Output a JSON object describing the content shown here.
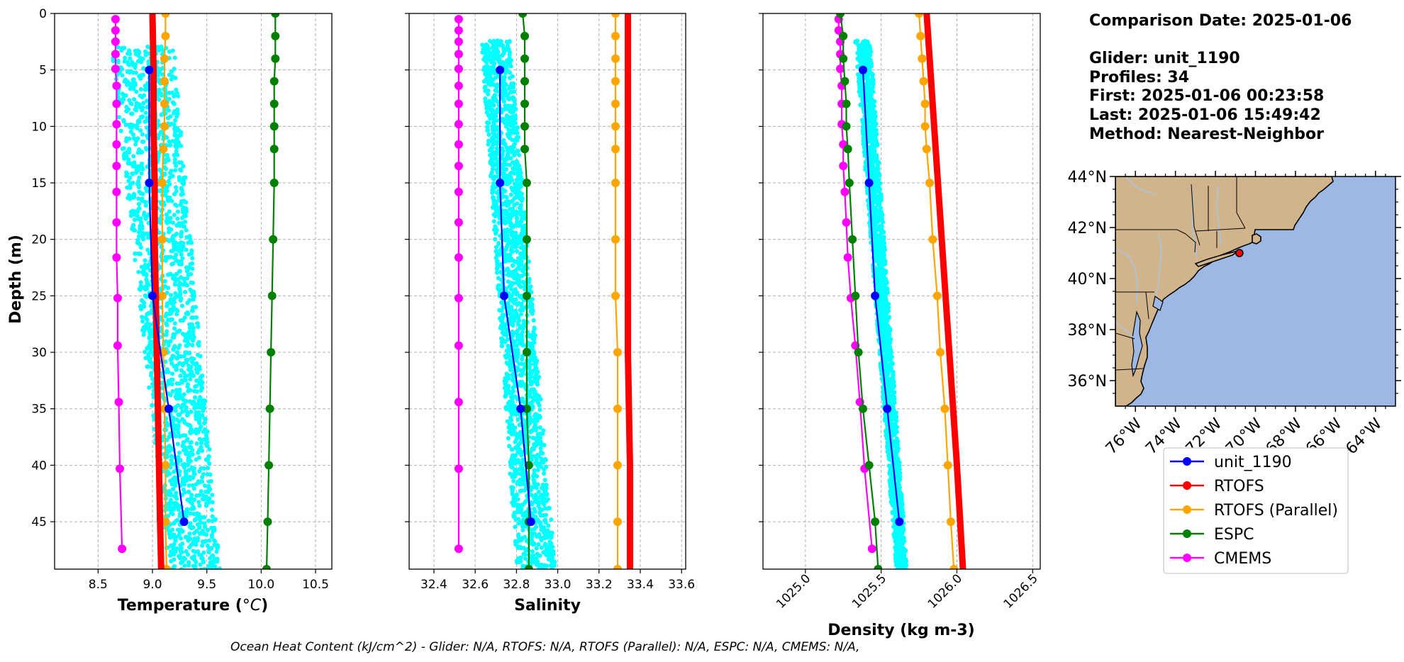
{
  "info": {
    "comparison_date": "Comparison Date: 2025-01-06",
    "glider": "Glider: unit_1190",
    "profiles": "Profiles: 34",
    "first": "First: 2025-01-06 00:23:58",
    "last": "Last: 2025-01-06 15:49:42",
    "method": "Method: Nearest-Neighbor"
  },
  "footer": "Ocean Heat Content (kJ/cm^2) - Glider: N/A,  RTOFS: N/A,  RTOFS (Parallel): N/A,  ESPC: N/A,  CMEMS: N/A,",
  "colors": {
    "unit_1190": "#0000ff",
    "RTOFS": "#ff0000",
    "RTOFS (Parallel)": "#ffa500",
    "ESPC": "#008000",
    "CMEMS": "#ff00ff",
    "glider_scatter": "#00ffff",
    "land": "#d2b48c",
    "ocean": "#9db9e3",
    "rivers": "#a8c4e6"
  },
  "legend": {
    "placement": "below-map",
    "entries": [
      "unit_1190",
      "RTOFS",
      "RTOFS (Parallel)",
      "ESPC",
      "CMEMS"
    ]
  },
  "chart_data": [
    {
      "type": "line",
      "id": "temperature",
      "xlabel": "Temperature (",
      "xlabel_unit": "°C",
      "xlabel_close": ")",
      "ylabel": "Depth (m)",
      "xlim": [
        8.1,
        10.65
      ],
      "ylim": [
        49.2,
        0
      ],
      "xticks": [
        8.5,
        9.0,
        9.5,
        10.0,
        10.5
      ],
      "xtick_labels": [
        "8.5",
        "9.0",
        "9.5",
        "10.0",
        "10.5"
      ],
      "yticks": [
        0,
        5,
        10,
        15,
        20,
        25,
        30,
        35,
        40,
        45
      ],
      "ytick_labels": [
        "0",
        "5",
        "10",
        "15",
        "20",
        "25",
        "30",
        "35",
        "40",
        "45"
      ],
      "grid": true,
      "scatter": {
        "name": "unit_1190",
        "depth_range": [
          3,
          49.2
        ],
        "x_low": [
          8.62,
          9.15
        ],
        "x_high": [
          9.2,
          9.62
        ]
      },
      "series": [
        {
          "name": "unit_1190",
          "y": [
            5,
            15,
            25,
            35,
            45
          ],
          "x": [
            8.97,
            8.97,
            9.0,
            9.15,
            9.29
          ]
        },
        {
          "name": "RTOFS",
          "y": [
            0,
            5,
            10,
            15,
            20,
            25,
            30,
            35,
            40,
            45,
            49.2
          ],
          "x": [
            9.0,
            9.01,
            9.01,
            9.02,
            9.02,
            9.03,
            9.04,
            9.05,
            9.06,
            9.07,
            9.08
          ],
          "markers": false
        },
        {
          "name": "RTOFS (Parallel)",
          "y": [
            0,
            2,
            4,
            6,
            8,
            10,
            12,
            15,
            20,
            25,
            30,
            35,
            40,
            45,
            49.2
          ],
          "x": [
            9.12,
            9.12,
            9.11,
            9.11,
            9.11,
            9.11,
            9.1,
            9.09,
            9.09,
            9.09,
            9.1,
            9.11,
            9.12,
            9.12,
            9.13
          ],
          "markers": true
        },
        {
          "name": "ESPC",
          "y": [
            0,
            2,
            4,
            6,
            8,
            10,
            12,
            15,
            20,
            25,
            30,
            35,
            40,
            45,
            49.2
          ],
          "x": [
            10.13,
            10.13,
            10.13,
            10.12,
            10.12,
            10.12,
            10.12,
            10.12,
            10.11,
            10.1,
            10.09,
            10.08,
            10.07,
            10.06,
            10.05
          ],
          "markers": true
        },
        {
          "name": "CMEMS",
          "y": [
            0.5,
            1.5,
            2.5,
            3.6,
            4.9,
            6.4,
            8.0,
            9.8,
            11.6,
            13.5,
            15.8,
            18.5,
            21.6,
            25.2,
            29.4,
            34.4,
            40.3,
            47.4
          ],
          "x": [
            8.66,
            8.66,
            8.66,
            8.66,
            8.66,
            8.67,
            8.67,
            8.67,
            8.67,
            8.67,
            8.67,
            8.67,
            8.67,
            8.68,
            8.68,
            8.69,
            8.7,
            8.72
          ],
          "markers": true
        }
      ]
    },
    {
      "type": "line",
      "id": "salinity",
      "xlabel": "Salinity",
      "xlim": [
        32.28,
        33.62
      ],
      "ylim": [
        49.2,
        0
      ],
      "xticks": [
        32.4,
        32.6,
        32.8,
        33.0,
        33.2,
        33.4,
        33.6
      ],
      "xtick_labels": [
        "32.4",
        "32.6",
        "32.8",
        "33.0",
        "33.2",
        "33.4",
        "33.6"
      ],
      "yticks": [
        0,
        5,
        10,
        15,
        20,
        25,
        30,
        35,
        40,
        45
      ],
      "grid": true,
      "scatter": {
        "name": "unit_1190",
        "depth_range": [
          2.5,
          49.2
        ],
        "x_low": [
          32.63,
          32.8
        ],
        "x_high": [
          32.77,
          32.99
        ]
      },
      "series": [
        {
          "name": "unit_1190",
          "y": [
            5,
            15,
            25,
            35,
            45
          ],
          "x": [
            32.72,
            32.72,
            32.74,
            32.82,
            32.87
          ]
        },
        {
          "name": "RTOFS",
          "y": [
            0,
            10,
            20,
            30,
            40,
            49.2
          ],
          "x": [
            33.34,
            33.34,
            33.34,
            33.34,
            33.35,
            33.35
          ],
          "markers": false
        },
        {
          "name": "RTOFS (Parallel)",
          "y": [
            0,
            2,
            4,
            6,
            8,
            10,
            12,
            15,
            20,
            25,
            30,
            35,
            40,
            45,
            49.2
          ],
          "x": [
            33.28,
            33.28,
            33.28,
            33.28,
            33.28,
            33.28,
            33.28,
            33.28,
            33.28,
            33.28,
            33.29,
            33.29,
            33.29,
            33.29,
            33.29
          ],
          "markers": true
        },
        {
          "name": "ESPC",
          "y": [
            0,
            2,
            4,
            6,
            8,
            10,
            12,
            15,
            20,
            25,
            30,
            35,
            40,
            45,
            49.2
          ],
          "x": [
            32.83,
            32.84,
            32.84,
            32.84,
            32.84,
            32.84,
            32.84,
            32.85,
            32.85,
            32.85,
            32.85,
            32.85,
            32.86,
            32.86,
            32.86
          ],
          "markers": true
        },
        {
          "name": "CMEMS",
          "y": [
            0.5,
            1.5,
            2.5,
            3.6,
            4.9,
            6.4,
            8.0,
            9.8,
            11.6,
            13.5,
            15.8,
            18.5,
            21.6,
            25.2,
            29.4,
            34.4,
            40.3,
            47.4
          ],
          "x": [
            32.52,
            32.52,
            32.52,
            32.52,
            32.52,
            32.52,
            32.52,
            32.52,
            32.52,
            32.52,
            32.52,
            32.52,
            32.52,
            32.52,
            32.52,
            32.52,
            32.52,
            32.52
          ],
          "markers": true
        }
      ]
    },
    {
      "type": "line",
      "id": "density",
      "xlabel": "Density (kg m-3)",
      "xlim": [
        1024.72,
        1026.55
      ],
      "ylim": [
        49.2,
        0
      ],
      "xticks": [
        1025.0,
        1025.5,
        1026.0,
        1026.5
      ],
      "xtick_labels": [
        "1025.0",
        "1025.5",
        "1026.0",
        "1026.5"
      ],
      "yticks": [
        0,
        5,
        10,
        15,
        20,
        25,
        30,
        35,
        40,
        45
      ],
      "grid": true,
      "scatter": {
        "name": "unit_1190",
        "depth_range": [
          2.5,
          49.2
        ],
        "x_low": [
          1025.33,
          1025.6
        ],
        "x_high": [
          1025.43,
          1025.67
        ]
      },
      "series": [
        {
          "name": "unit_1190",
          "y": [
            5,
            15,
            25,
            35,
            45
          ],
          "x": [
            1025.38,
            1025.42,
            1025.46,
            1025.54,
            1025.62
          ]
        },
        {
          "name": "RTOFS",
          "y": [
            0,
            10,
            20,
            30,
            40,
            49.2
          ],
          "x": [
            1025.8,
            1025.85,
            1025.9,
            1025.95,
            1026.0,
            1026.04
          ],
          "markers": false
        },
        {
          "name": "RTOFS (Parallel)",
          "y": [
            0,
            2,
            4,
            6,
            8,
            10,
            12,
            15,
            20,
            25,
            30,
            35,
            40,
            45,
            49.2
          ],
          "x": [
            1025.75,
            1025.76,
            1025.77,
            1025.78,
            1025.79,
            1025.79,
            1025.8,
            1025.82,
            1025.84,
            1025.87,
            1025.89,
            1025.92,
            1025.94,
            1025.96,
            1025.98
          ],
          "markers": true
        },
        {
          "name": "ESPC",
          "y": [
            0,
            2,
            4,
            6,
            8,
            10,
            12,
            15,
            20,
            25,
            30,
            35,
            40,
            45,
            49.2
          ],
          "x": [
            1025.23,
            1025.25,
            1025.25,
            1025.26,
            1025.27,
            1025.27,
            1025.28,
            1025.29,
            1025.31,
            1025.33,
            1025.35,
            1025.38,
            1025.42,
            1025.46,
            1025.48
          ],
          "markers": true
        },
        {
          "name": "CMEMS",
          "y": [
            0.5,
            1.5,
            2.5,
            3.6,
            4.9,
            6.4,
            8.0,
            9.8,
            11.6,
            13.5,
            15.8,
            18.5,
            21.6,
            25.2,
            29.4,
            34.4,
            40.3,
            47.4
          ],
          "x": [
            1025.22,
            1025.22,
            1025.23,
            1025.23,
            1025.23,
            1025.24,
            1025.24,
            1025.24,
            1025.25,
            1025.25,
            1025.26,
            1025.27,
            1025.28,
            1025.3,
            1025.33,
            1025.36,
            1025.39,
            1025.44
          ],
          "markers": true
        }
      ]
    }
  ],
  "map": {
    "lat_range": [
      35,
      44
    ],
    "lon_range": [
      -77,
      -63
    ],
    "lat_ticks": [
      36,
      38,
      40,
      42,
      44
    ],
    "lat_tick_labels": [
      "36°N",
      "38°N",
      "40°N",
      "42°N",
      "44°N"
    ],
    "lon_ticks": [
      -76,
      -74,
      -72,
      -70,
      -68,
      -66,
      -64
    ],
    "lon_tick_labels": [
      "76°W",
      "74°W",
      "72°W",
      "70°W",
      "68°W",
      "66°W",
      "64°W"
    ],
    "glider_position": {
      "lon": -70.8,
      "lat": 41.0
    }
  }
}
